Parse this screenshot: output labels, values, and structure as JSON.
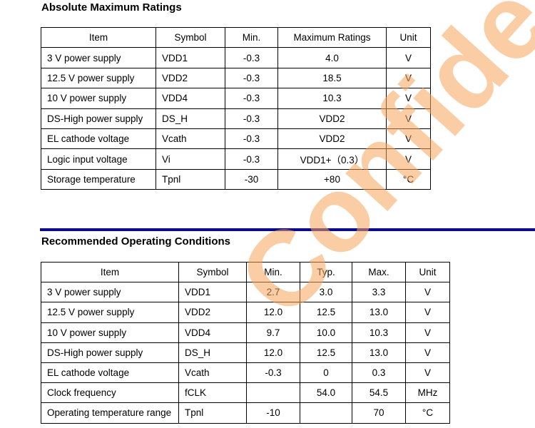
{
  "section1": {
    "title": "Absolute Maximum Ratings",
    "headers": [
      "Item",
      "Symbol",
      "Min.",
      "Maximum Ratings",
      "Unit"
    ],
    "rows": [
      [
        "3 V power supply",
        "VDD1",
        "-0.3",
        "4.0",
        "V"
      ],
      [
        "12.5 V power supply",
        "VDD2",
        "-0.3",
        "18.5",
        "V"
      ],
      [
        "10 V power supply",
        "VDD4",
        "-0.3",
        "10.3",
        "V"
      ],
      [
        "DS-High power supply",
        "DS_H",
        "-0.3",
        "VDD2",
        "V"
      ],
      [
        "EL cathode voltage",
        "Vcath",
        "-0.3",
        "VDD2",
        "V"
      ],
      [
        "Logic input voltage",
        "Vi",
        "-0.3",
        "VDD1+（0.3）",
        "V"
      ],
      [
        "Storage temperature",
        "Tpnl",
        "-30",
        "+80",
        "°C"
      ]
    ]
  },
  "section2": {
    "title": "Recommended Operating Conditions",
    "headers": [
      "Item",
      "Symbol",
      "Min.",
      "Typ.",
      "Max.",
      "Unit"
    ],
    "rows": [
      [
        "3 V power supply",
        "VDD1",
        "2.7",
        "3.0",
        "3.3",
        "V"
      ],
      [
        "12.5 V power supply",
        "VDD2",
        "12.0",
        "12.5",
        "13.0",
        "V"
      ],
      [
        "10 V power supply",
        "VDD4",
        "9.7",
        "10.0",
        "10.3",
        "V"
      ],
      [
        "DS-High power supply",
        "DS_H",
        "12.0",
        "12.5",
        "13.0",
        "V"
      ],
      [
        "EL cathode voltage",
        "Vcath",
        "-0.3",
        "0",
        "0.3",
        "V"
      ],
      [
        "Clock frequency",
        "fCLK",
        "",
        "54.0",
        "54.5",
        "MHz"
      ],
      [
        "Operating temperature range",
        "Tpnl",
        "-10",
        "",
        "70",
        "°C"
      ]
    ]
  },
  "watermark": {
    "text": "Confidential",
    "color": "#f6a65a"
  },
  "divider_color": "#0a0a8c"
}
